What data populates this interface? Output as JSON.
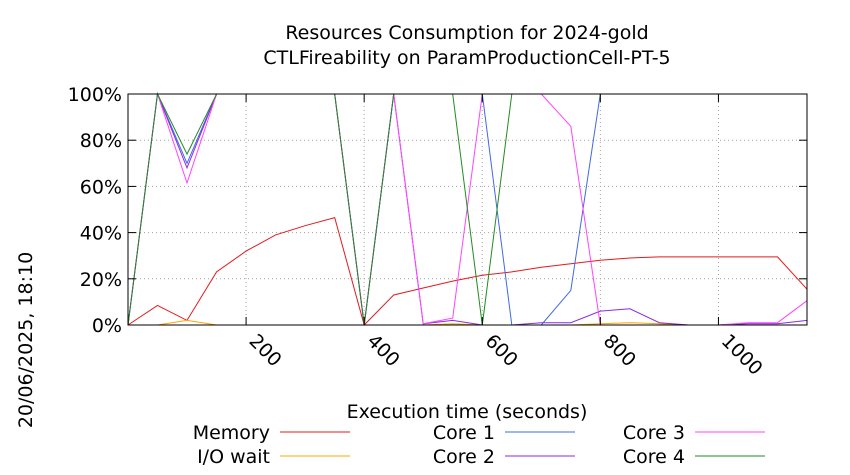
{
  "chart_data": {
    "type": "line",
    "title": "Resources Consumption for 2024-gold",
    "subtitle": "CTLFireability on ParamProductionCell-PT-5",
    "xlabel": "Execution time (seconds)",
    "ylabel": "",
    "side_label": "20/06/2025, 18:10",
    "xlim": [
      0,
      1150
    ],
    "ylim": [
      0,
      100
    ],
    "x_ticks": [
      200,
      400,
      600,
      800,
      1000
    ],
    "y_ticks": [
      0,
      20,
      40,
      60,
      80,
      100
    ],
    "y_tick_labels": [
      "0%",
      "20%",
      "40%",
      "60%",
      "80%",
      "100%"
    ],
    "grid": true,
    "legend_position": "bottom",
    "series": [
      {
        "name": "Memory",
        "color": "#e41a1c",
        "x": [
          0,
          50,
          100,
          150,
          200,
          250,
          300,
          350,
          400,
          450,
          500,
          550,
          600,
          650,
          700,
          750,
          800,
          850,
          900,
          950,
          1000,
          1050,
          1100,
          1150
        ],
        "y": [
          0,
          8.5,
          2,
          23,
          32,
          39,
          43,
          46.5,
          0,
          13,
          16,
          19,
          21.5,
          23,
          25,
          26.5,
          28,
          29,
          29.5,
          29.5,
          29.5,
          29.5,
          29.5,
          15.5
        ]
      },
      {
        "name": "I/O wait",
        "color": "#ffa500",
        "x": [
          0,
          50,
          100,
          150,
          200,
          250,
          300,
          350,
          400,
          450,
          500,
          550,
          600,
          650,
          700,
          750,
          800,
          850,
          900,
          950,
          1000,
          1050,
          1100,
          1150
        ],
        "y": [
          0,
          0,
          2,
          0,
          0,
          0,
          0,
          0,
          0,
          0,
          0,
          0.5,
          0,
          0,
          0,
          0,
          0.5,
          1,
          0.5,
          0,
          0,
          0,
          0,
          0
        ]
      },
      {
        "name": "Core 1",
        "color": "#4169e1",
        "x": [
          0,
          50,
          100,
          150,
          200,
          250,
          300,
          350,
          400,
          450,
          500,
          550,
          600,
          650,
          700,
          750,
          800,
          850,
          900,
          950,
          1000,
          1050,
          1100,
          1150
        ],
        "y": [
          0,
          100,
          70,
          100,
          100,
          100,
          100,
          100,
          0,
          100,
          100,
          100,
          100,
          0,
          0,
          15,
          100,
          100,
          100,
          100,
          100,
          100,
          100,
          100
        ]
      },
      {
        "name": "Core 2",
        "color": "#8a2be2",
        "x": [
          0,
          50,
          100,
          150,
          200,
          250,
          300,
          350,
          400,
          450,
          500,
          550,
          600,
          650,
          700,
          750,
          800,
          850,
          900,
          950,
          1000,
          1050,
          1100,
          1150
        ],
        "y": [
          0,
          100,
          68,
          100,
          100,
          100,
          100,
          100,
          0,
          100,
          0.5,
          2,
          0,
          0,
          1,
          1,
          6,
          7,
          1,
          0,
          0,
          0.5,
          0.5,
          2
        ]
      },
      {
        "name": "Core 3",
        "color": "#ff44ff",
        "x": [
          0,
          50,
          100,
          150,
          200,
          250,
          300,
          350,
          400,
          450,
          500,
          550,
          600,
          650,
          700,
          750,
          800,
          850,
          900,
          950,
          1000,
          1050,
          1100,
          1150
        ],
        "y": [
          0,
          100,
          61.5,
          100,
          100,
          100,
          100,
          100,
          0,
          100,
          0.5,
          3,
          100,
          100,
          100,
          86,
          0,
          0,
          0,
          0,
          0,
          1,
          1,
          10.5
        ]
      },
      {
        "name": "Core 4",
        "color": "#228b22",
        "x": [
          0,
          50,
          100,
          150,
          200,
          250,
          300,
          350,
          400,
          450,
          500,
          550,
          600,
          650,
          700,
          750,
          800,
          850,
          900,
          950,
          1000,
          1050,
          1100,
          1150
        ],
        "y": [
          0,
          100,
          74,
          100,
          100,
          100,
          100,
          100,
          0,
          100,
          100,
          100,
          0,
          100,
          100,
          100,
          100,
          100,
          100,
          100,
          100,
          100,
          100,
          100
        ]
      }
    ]
  }
}
